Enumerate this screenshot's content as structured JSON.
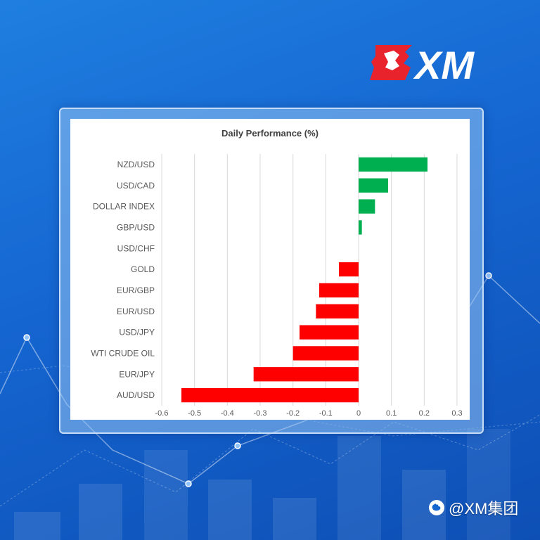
{
  "brand": {
    "logo_text": "XM"
  },
  "watermark": {
    "text": "@XM集团",
    "icon": "weibo-icon"
  },
  "colors": {
    "positive": "#00b050",
    "negative": "#ff0000",
    "grid": "#d9d9d9"
  },
  "chart_data": {
    "type": "bar",
    "orientation": "horizontal",
    "title": "Daily Performance (%)",
    "xlabel": "",
    "ylabel": "",
    "categories": [
      "NZD/USD",
      "USD/CAD",
      "DOLLAR INDEX",
      "GBP/USD",
      "USD/CHF",
      "GOLD",
      "EUR/GBP",
      "EUR/USD",
      "USD/JPY",
      "WTI CRUDE OIL",
      "EUR/JPY",
      "AUD/USD"
    ],
    "values": [
      0.21,
      0.09,
      0.05,
      0.01,
      0.0,
      -0.06,
      -0.12,
      -0.13,
      -0.18,
      -0.2,
      -0.32,
      -0.54
    ],
    "xlim": [
      -0.6,
      0.3
    ],
    "xticks": [
      "-0.6",
      "-0.5",
      "-0.4",
      "-0.3",
      "-0.2",
      "-0.1",
      "0",
      "0.1",
      "0.2",
      "0.3"
    ],
    "grid": "vertical",
    "legend": "none"
  }
}
